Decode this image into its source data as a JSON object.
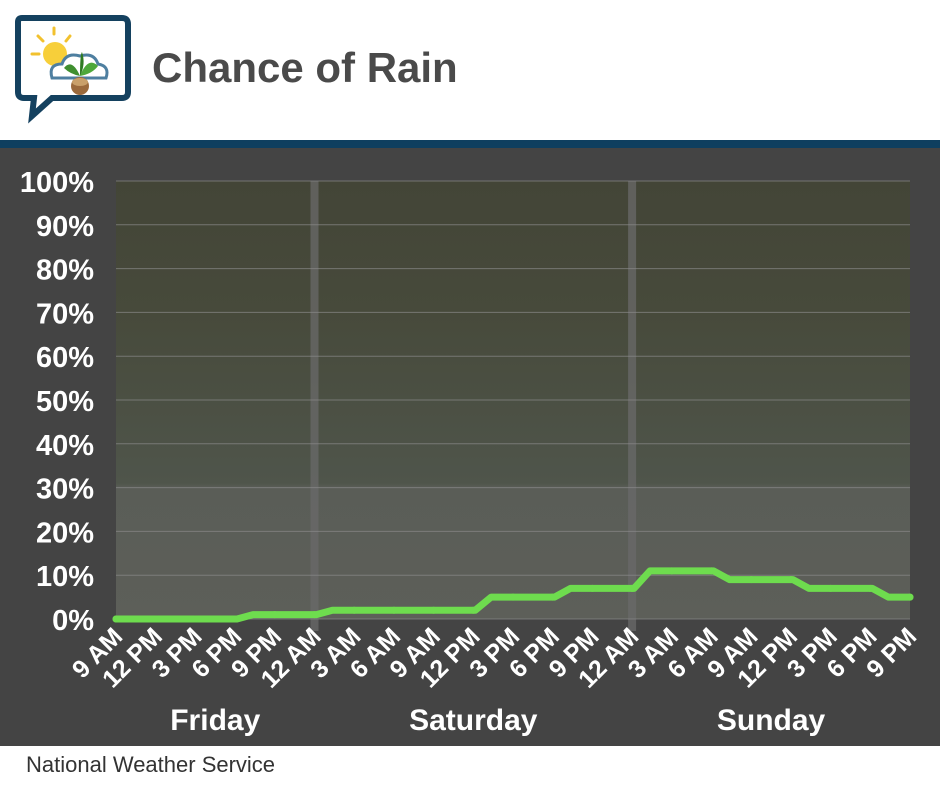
{
  "header": {
    "title": "Chance of Rain",
    "logo_icon": "weather-speech-bubble-icon"
  },
  "footer": {
    "source": "National Weather Service"
  },
  "colors": {
    "panel_background": "#444444",
    "header_rule": "#0f3f5f",
    "line": "#6edc4e",
    "day_separator": "#6a6a6a",
    "grid": "#8a8a8a",
    "text_light": "#ffffff"
  },
  "chart_data": {
    "type": "line",
    "title": "Chance of Rain",
    "xlabel": "",
    "ylabel": "",
    "ylim": [
      0,
      100
    ],
    "yticks": [
      "0%",
      "10%",
      "20%",
      "30%",
      "40%",
      "50%",
      "60%",
      "70%",
      "80%",
      "90%",
      "100%"
    ],
    "grid": true,
    "x_tick_labels": [
      "9 AM",
      "12 PM",
      "3 PM",
      "6 PM",
      "9 PM",
      "12 AM",
      "3 AM",
      "6 AM",
      "9 AM",
      "12 PM",
      "3 PM",
      "6 PM",
      "9 PM",
      "12 AM",
      "3 AM",
      "6 AM",
      "9 AM",
      "12 PM",
      "3 PM",
      "6 PM",
      "9 PM"
    ],
    "days": [
      {
        "name": "Friday",
        "start_hour": 0,
        "end_hour": 15
      },
      {
        "name": "Saturday",
        "start_hour": 15,
        "end_hour": 39
      },
      {
        "name": "Sunday",
        "start_hour": 39,
        "end_hour": 60
      }
    ],
    "hours_since_start_of_first_tick": [
      0,
      3,
      6,
      9,
      12,
      15,
      18,
      21,
      24,
      27,
      30,
      33,
      36,
      39,
      42,
      45,
      48,
      51,
      54,
      57,
      60
    ],
    "series": [
      {
        "values": [
          0,
          0,
          0,
          0,
          1,
          1,
          2,
          2,
          2,
          2,
          5,
          5,
          7,
          7,
          11,
          11,
          9,
          9,
          7,
          7,
          5
        ]
      }
    ]
  }
}
